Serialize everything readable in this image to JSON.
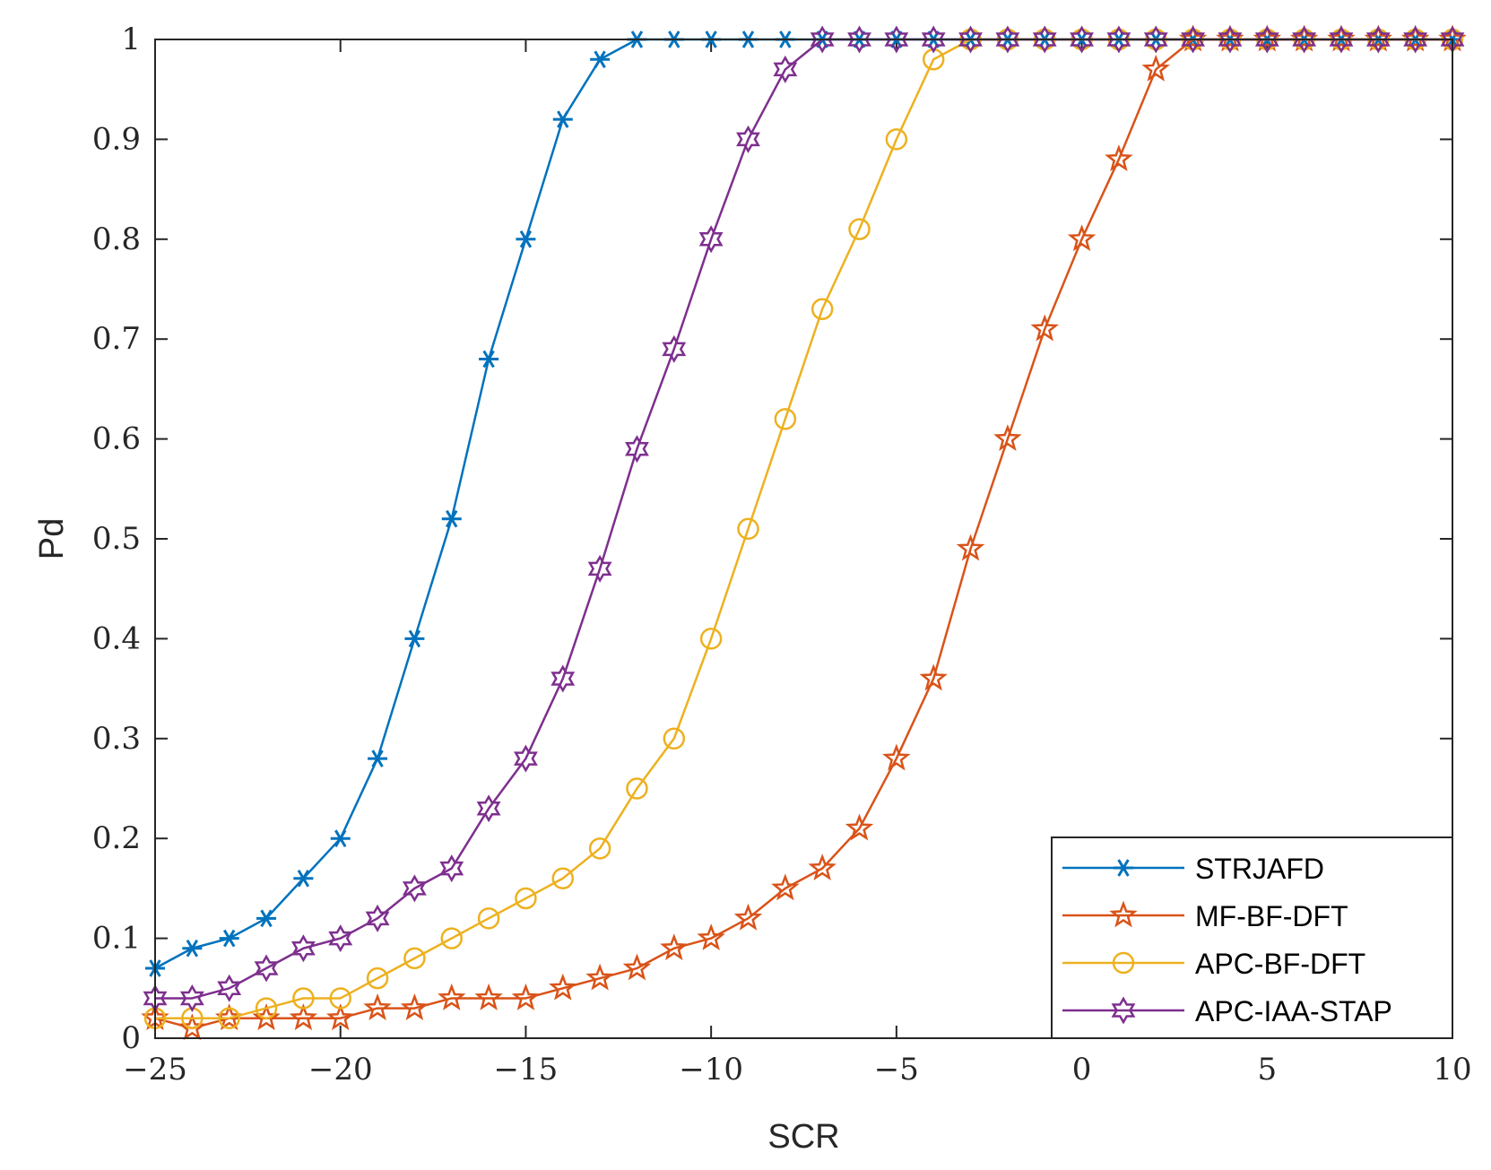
{
  "chart_data": {
    "type": "line",
    "xlabel": "SCR",
    "ylabel": "Pd",
    "xlim": [
      -25,
      10
    ],
    "ylim": [
      0,
      1
    ],
    "xticks": [
      -25,
      -20,
      -15,
      -10,
      -5,
      0,
      5,
      10
    ],
    "xtick_labels": [
      "−25",
      "−20",
      "−15",
      "−10",
      "−5",
      "0",
      "5",
      "10"
    ],
    "yticks": [
      0,
      0.1,
      0.2,
      0.3,
      0.4,
      0.5,
      0.6,
      0.7,
      0.8,
      0.9,
      1
    ],
    "ytick_labels": [
      "0",
      "0.1",
      "0.2",
      "0.3",
      "0.4",
      "0.5",
      "0.6",
      "0.7",
      "0.8",
      "0.9",
      "1"
    ],
    "grid": false,
    "legend_position": "bottom-right",
    "x": [
      -25,
      -24,
      -23,
      -22,
      -21,
      -20,
      -19,
      -18,
      -17,
      -16,
      -15,
      -14,
      -13,
      -12,
      -11,
      -10,
      -9,
      -8,
      -7,
      -6,
      -5,
      -4,
      -3,
      -2,
      -1,
      0,
      1,
      2,
      3,
      4,
      5,
      6,
      7,
      8,
      9,
      10
    ],
    "series": [
      {
        "name": "STRJAFD",
        "color": "#0072BD",
        "marker": "asterisk",
        "values": [
          0.07,
          0.09,
          0.1,
          0.12,
          0.16,
          0.2,
          0.28,
          0.4,
          0.52,
          0.68,
          0.8,
          0.92,
          0.98,
          1,
          1,
          1,
          1,
          1,
          1,
          1,
          1,
          1,
          1,
          1,
          1,
          1,
          1,
          1,
          1,
          1,
          1,
          1,
          1,
          1,
          1,
          1
        ]
      },
      {
        "name": "MF-BF-DFT",
        "color": "#D95319",
        "marker": "pentagram",
        "values": [
          0.02,
          0.01,
          0.02,
          0.02,
          0.02,
          0.02,
          0.03,
          0.03,
          0.04,
          0.04,
          0.04,
          0.05,
          0.06,
          0.07,
          0.09,
          0.1,
          0.12,
          0.15,
          0.17,
          0.21,
          0.28,
          0.36,
          0.49,
          0.6,
          0.71,
          0.8,
          0.88,
          0.97,
          1,
          1,
          1,
          1,
          1,
          1,
          1,
          1
        ]
      },
      {
        "name": "APC-BF-DFT",
        "color": "#EDB120",
        "marker": "circle",
        "values": [
          0.02,
          0.02,
          0.02,
          0.03,
          0.04,
          0.04,
          0.06,
          0.08,
          0.1,
          0.12,
          0.14,
          0.16,
          0.19,
          0.25,
          0.3,
          0.4,
          0.51,
          0.62,
          0.73,
          0.81,
          0.9,
          0.98,
          1,
          1,
          1,
          1,
          1,
          1,
          1,
          1,
          1,
          1,
          1,
          1,
          1,
          1
        ]
      },
      {
        "name": "APC-IAA-STAP",
        "color": "#7E2F8E",
        "marker": "hexagram",
        "values": [
          0.04,
          0.04,
          0.05,
          0.07,
          0.09,
          0.1,
          0.12,
          0.15,
          0.17,
          0.23,
          0.28,
          0.36,
          0.47,
          0.59,
          0.69,
          0.8,
          0.9,
          0.97,
          1,
          1,
          1,
          1,
          1,
          1,
          1,
          1,
          1,
          1,
          1,
          1,
          1,
          1,
          1,
          1,
          1,
          1
        ]
      }
    ]
  }
}
